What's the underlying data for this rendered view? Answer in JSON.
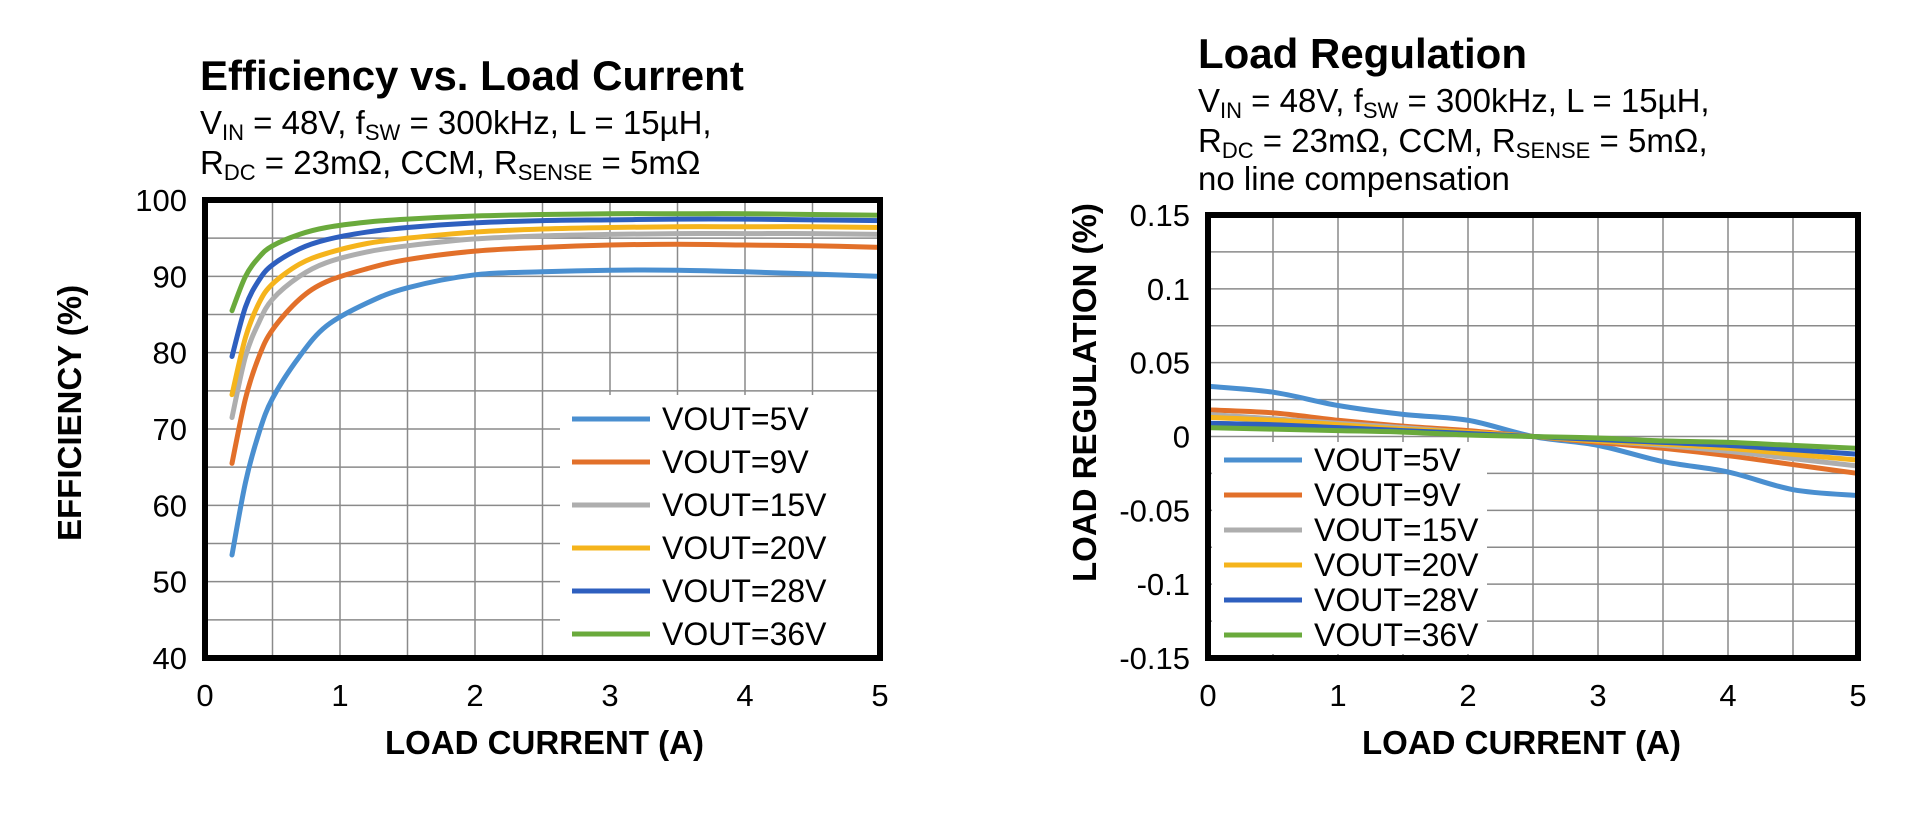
{
  "charts": [
    {
      "title": "Efficiency vs. Load Current",
      "conditions": {
        "line1": [
          {
            "t": "V"
          },
          {
            "t": "IN",
            "sub": true
          },
          {
            "t": " = 48V, f"
          },
          {
            "t": "SW",
            "sub": true
          },
          {
            "t": " = 300kHz, L = 15µH,"
          }
        ],
        "line2": [
          {
            "t": "R"
          },
          {
            "t": "DC",
            "sub": true
          },
          {
            "t": " = 23mΩ, CCM, R"
          },
          {
            "t": "SENSE",
            "sub": true
          },
          {
            "t": " = 5mΩ"
          }
        ]
      },
      "xlabel": "LOAD CURRENT (A)",
      "ylabel": "EFFICIENCY (%)"
    },
    {
      "title": "Load Regulation",
      "conditions": {
        "line1": [
          {
            "t": "V"
          },
          {
            "t": "IN",
            "sub": true
          },
          {
            "t": " = 48V, f"
          },
          {
            "t": "SW",
            "sub": true
          },
          {
            "t": " = 300kHz, L = 15µH,"
          }
        ],
        "line2": [
          {
            "t": "R"
          },
          {
            "t": "DC",
            "sub": true
          },
          {
            "t": " = 23mΩ, CCM, R"
          },
          {
            "t": "SENSE",
            "sub": true
          },
          {
            "t": " = 5mΩ,"
          }
        ],
        "line3": [
          {
            "t": "no line compensation"
          }
        ]
      },
      "xlabel": "LOAD CURRENT (A)",
      "ylabel": "LOAD REGULATION (%)"
    }
  ],
  "chart_data": [
    {
      "type": "line",
      "title": "Efficiency vs. Load Current",
      "xlabel": "LOAD CURRENT (A)",
      "ylabel": "EFFICIENCY (%)",
      "xlim": [
        0,
        5
      ],
      "ylim": [
        40,
        100
      ],
      "xticks": [
        "0",
        "1",
        "2",
        "3",
        "4",
        "5"
      ],
      "yticks": [
        "40",
        "50",
        "60",
        "70",
        "80",
        "90",
        "100"
      ],
      "grid": true,
      "legend_position": "bottom-right",
      "series": [
        {
          "name": "VOUT=5V",
          "color": "#4a8fd0",
          "x": [
            0.2,
            0.3,
            0.4,
            0.5,
            0.7,
            0.9,
            1.2,
            1.5,
            2,
            2.5,
            3,
            3.5,
            4,
            4.5,
            5
          ],
          "y": [
            53.5,
            63,
            69.5,
            74,
            79.5,
            83.5,
            86.5,
            88.5,
            90.2,
            90.6,
            90.8,
            90.8,
            90.6,
            90.3,
            90
          ]
        },
        {
          "name": "VOUT=9V",
          "color": "#e2702a",
          "x": [
            0.2,
            0.3,
            0.4,
            0.5,
            0.7,
            0.9,
            1.2,
            1.5,
            2,
            2.5,
            3,
            3.5,
            4,
            4.5,
            5
          ],
          "y": [
            65.5,
            74,
            79.5,
            83,
            87,
            89.3,
            91,
            92.2,
            93.3,
            93.8,
            94.1,
            94.2,
            94.1,
            94,
            93.8
          ]
        },
        {
          "name": "VOUT=15V",
          "color": "#aeaeae",
          "x": [
            0.2,
            0.3,
            0.4,
            0.5,
            0.7,
            0.9,
            1.2,
            1.5,
            2,
            2.5,
            3,
            3.5,
            4,
            4.5,
            5
          ],
          "y": [
            71.5,
            79.5,
            84,
            87,
            90,
            91.8,
            93.2,
            94,
            94.9,
            95.3,
            95.5,
            95.6,
            95.6,
            95.6,
            95.5
          ]
        },
        {
          "name": "VOUT=20V",
          "color": "#f5b41c",
          "x": [
            0.2,
            0.3,
            0.4,
            0.5,
            0.7,
            0.9,
            1.2,
            1.5,
            2,
            2.5,
            3,
            3.5,
            4,
            4.5,
            5
          ],
          "y": [
            74.5,
            82,
            86.5,
            89,
            91.6,
            93,
            94.3,
            95,
            95.8,
            96.2,
            96.4,
            96.5,
            96.5,
            96.5,
            96.4
          ]
        },
        {
          "name": "VOUT=28V",
          "color": "#2e5fbf",
          "x": [
            0.2,
            0.3,
            0.4,
            0.5,
            0.7,
            0.9,
            1.2,
            1.5,
            2,
            2.5,
            3,
            3.5,
            4,
            4.5,
            5
          ],
          "y": [
            79.5,
            86,
            89.5,
            91.5,
            93.6,
            94.8,
            95.8,
            96.4,
            97,
            97.3,
            97.4,
            97.5,
            97.5,
            97.4,
            97.3
          ]
        },
        {
          "name": "VOUT=36V",
          "color": "#6aaa3c",
          "x": [
            0.2,
            0.3,
            0.4,
            0.5,
            0.7,
            0.9,
            1.2,
            1.5,
            2,
            2.5,
            3,
            3.5,
            4,
            4.5,
            5
          ],
          "y": [
            85.5,
            90,
            92.5,
            94,
            95.5,
            96.4,
            97.1,
            97.5,
            97.9,
            98.1,
            98.2,
            98.2,
            98.2,
            98.1,
            98
          ]
        }
      ]
    },
    {
      "type": "line",
      "title": "Load Regulation",
      "xlabel": "LOAD CURRENT (A)",
      "ylabel": "LOAD REGULATION (%)",
      "xlim": [
        0,
        5
      ],
      "ylim": [
        -0.15,
        0.15
      ],
      "xticks": [
        "0",
        "1",
        "2",
        "3",
        "4",
        "5"
      ],
      "yticks": [
        "-0.15",
        "-0.1",
        "-0.05",
        "0",
        "0.05",
        "0.1",
        "0.15"
      ],
      "grid": true,
      "legend_position": "bottom-left",
      "series": [
        {
          "name": "VOUT=5V",
          "color": "#4a8fd0",
          "x": [
            0,
            0.5,
            1,
            1.5,
            2,
            2.5,
            3,
            3.5,
            4,
            4.5,
            5
          ],
          "y": [
            0.034,
            0.03,
            0.021,
            0.015,
            0.011,
            0.0,
            -0.006,
            -0.017,
            -0.024,
            -0.036,
            -0.04
          ]
        },
        {
          "name": "VOUT=9V",
          "color": "#e2702a",
          "x": [
            0,
            0.5,
            1,
            1.5,
            2,
            2.5,
            3,
            3.5,
            4,
            4.5,
            5
          ],
          "y": [
            0.018,
            0.016,
            0.011,
            0.007,
            0.004,
            0.0,
            -0.004,
            -0.008,
            -0.013,
            -0.019,
            -0.025
          ]
        },
        {
          "name": "VOUT=15V",
          "color": "#aeaeae",
          "x": [
            0,
            0.5,
            1,
            1.5,
            2,
            2.5,
            3,
            3.5,
            4,
            4.5,
            5
          ],
          "y": [
            0.015,
            0.012,
            0.009,
            0.006,
            0.003,
            0.0,
            -0.003,
            -0.006,
            -0.01,
            -0.015,
            -0.02
          ]
        },
        {
          "name": "VOUT=20V",
          "color": "#f5b41c",
          "x": [
            0,
            0.5,
            1,
            1.5,
            2,
            2.5,
            3,
            3.5,
            4,
            4.5,
            5
          ],
          "y": [
            0.013,
            0.011,
            0.008,
            0.005,
            0.003,
            0.0,
            -0.003,
            -0.005,
            -0.008,
            -0.012,
            -0.016
          ]
        },
        {
          "name": "VOUT=28V",
          "color": "#2e5fbf",
          "x": [
            0,
            0.5,
            1,
            1.5,
            2,
            2.5,
            3,
            3.5,
            4,
            4.5,
            5
          ],
          "y": [
            0.009,
            0.008,
            0.006,
            0.004,
            0.002,
            0.0,
            -0.002,
            -0.004,
            -0.006,
            -0.009,
            -0.012
          ]
        },
        {
          "name": "VOUT=36V",
          "color": "#6aaa3c",
          "x": [
            0,
            0.5,
            1,
            1.5,
            2,
            2.5,
            3,
            3.5,
            4,
            4.5,
            5
          ],
          "y": [
            0.006,
            0.005,
            0.004,
            0.003,
            0.001,
            0.0,
            -0.001,
            -0.003,
            -0.004,
            -0.006,
            -0.008
          ]
        }
      ]
    }
  ]
}
